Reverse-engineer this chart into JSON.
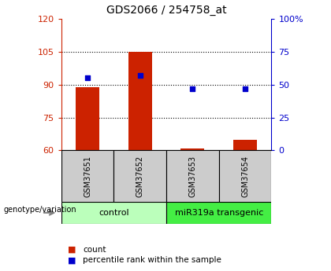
{
  "title": "GDS2066 / 254758_at",
  "samples": [
    "GSM37651",
    "GSM37652",
    "GSM37653",
    "GSM37654"
  ],
  "count_values": [
    89,
    105,
    61,
    65
  ],
  "percentile_values": [
    55,
    57,
    47,
    47
  ],
  "ylim_left": [
    60,
    120
  ],
  "ylim_right": [
    0,
    100
  ],
  "yticks_left": [
    60,
    75,
    90,
    105,
    120
  ],
  "yticks_right": [
    0,
    25,
    50,
    75,
    100
  ],
  "ytick_labels_right": [
    "0",
    "25",
    "50",
    "75",
    "100%"
  ],
  "bar_color": "#cc2200",
  "dot_color": "#0000cc",
  "bar_width": 0.45,
  "group_colors": [
    "#bbffbb",
    "#44ee44"
  ],
  "grid_color": "#000000",
  "bg_color": "#ffffff",
  "plot_bg": "#ffffff",
  "label_count": "count",
  "label_percentile": "percentile rank within the sample",
  "genotype_label": "genotype/variation",
  "sample_box_color": "#cccccc"
}
